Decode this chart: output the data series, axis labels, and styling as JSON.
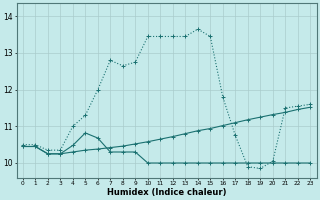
{
  "xlabel": "Humidex (Indice chaleur)",
  "bg_color": "#c5eaea",
  "line_color": "#1a7070",
  "grid_color": "#aacccc",
  "xlim": [
    -0.5,
    23.5
  ],
  "ylim": [
    9.6,
    14.35
  ],
  "xticks": [
    0,
    1,
    2,
    3,
    4,
    5,
    6,
    7,
    8,
    9,
    10,
    11,
    12,
    13,
    14,
    15,
    16,
    17,
    18,
    19,
    20,
    21,
    22,
    23
  ],
  "yticks": [
    10,
    11,
    12,
    13,
    14
  ],
  "line1_x": [
    0,
    1,
    2,
    3,
    4,
    5,
    6,
    7,
    8,
    9,
    10,
    11,
    12,
    13,
    14,
    15,
    16,
    17,
    18,
    19,
    20,
    21,
    22,
    23
  ],
  "line1_y": [
    10.5,
    10.5,
    10.35,
    10.35,
    11.0,
    11.3,
    12.0,
    12.8,
    12.65,
    12.75,
    13.45,
    13.45,
    13.45,
    13.45,
    13.65,
    13.45,
    11.8,
    10.75,
    9.9,
    9.85,
    10.05,
    11.5,
    11.55,
    11.6
  ],
  "line2_x": [
    0,
    1,
    2,
    3,
    4,
    5,
    6,
    7,
    8,
    9,
    10,
    11,
    12,
    13,
    14,
    15,
    16,
    17,
    18,
    19,
    20,
    21,
    22,
    23
  ],
  "line2_y": [
    10.45,
    10.45,
    10.25,
    10.25,
    10.3,
    10.35,
    10.38,
    10.42,
    10.46,
    10.52,
    10.58,
    10.65,
    10.72,
    10.8,
    10.88,
    10.94,
    11.02,
    11.1,
    11.18,
    11.25,
    11.32,
    11.38,
    11.46,
    11.52
  ],
  "line3_x": [
    0,
    1,
    2,
    3,
    4,
    5,
    6,
    7,
    8,
    9,
    10,
    11,
    12,
    13,
    14,
    15,
    16,
    17,
    18,
    19,
    20,
    21,
    22,
    23
  ],
  "line3_y": [
    10.45,
    10.45,
    10.25,
    10.25,
    10.48,
    10.82,
    10.68,
    10.3,
    10.3,
    10.3,
    10.0,
    10.0,
    10.0,
    10.0,
    10.0,
    10.0,
    10.0,
    10.0,
    10.0,
    10.0,
    10.0,
    10.0,
    10.0,
    10.0
  ]
}
